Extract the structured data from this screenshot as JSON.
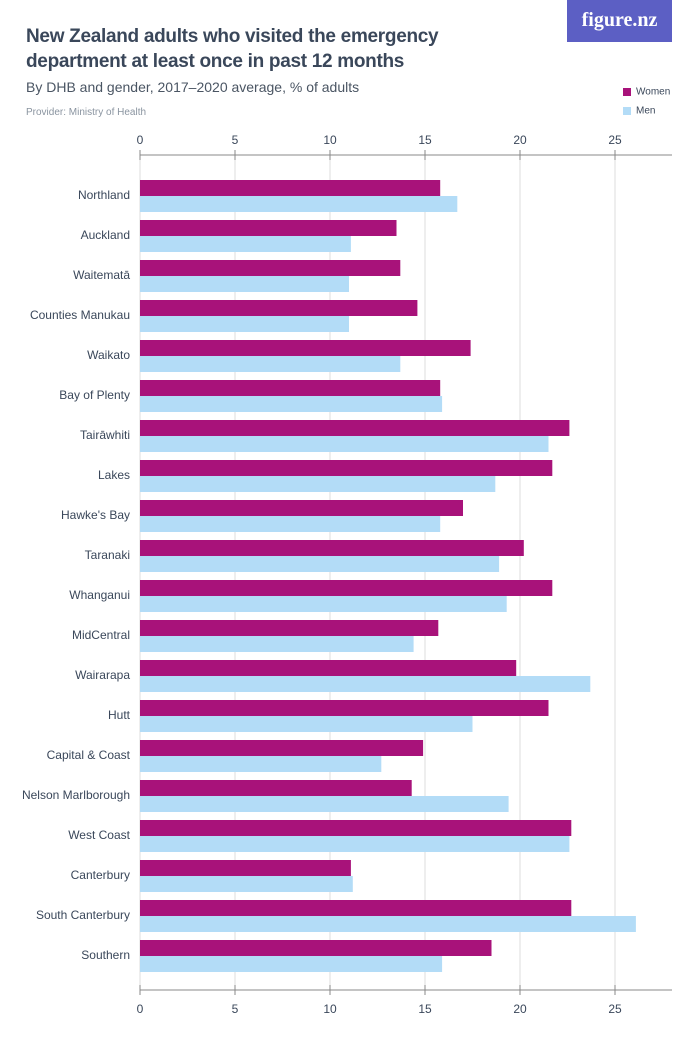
{
  "logo": "figure.nz",
  "chart_data": {
    "type": "hbar",
    "title": "New Zealand adults who visited the emergency department at least once in past 12 months",
    "subtitle": "By DHB and gender, 2017–2020 average, % of adults",
    "provider": "Provider: Ministry of Health",
    "categories": [
      "Northland",
      "Auckland",
      "Waitematā",
      "Counties Manukau",
      "Waikato",
      "Bay of Plenty",
      "Tairāwhiti",
      "Lakes",
      "Hawke's Bay",
      "Taranaki",
      "Whanganui",
      "MidCentral",
      "Wairarapa",
      "Hutt",
      "Capital & Coast",
      "Nelson Marlborough",
      "West Coast",
      "Canterbury",
      "South Canterbury",
      "Southern"
    ],
    "series": [
      {
        "name": "Women",
        "color": "#a8127a",
        "values": [
          15.8,
          13.5,
          13.7,
          14.6,
          17.4,
          15.8,
          22.6,
          21.7,
          17.0,
          20.2,
          21.7,
          15.7,
          19.8,
          21.5,
          14.9,
          14.3,
          22.7,
          11.1,
          22.7,
          18.5
        ]
      },
      {
        "name": "Men",
        "color": "#b3dcf7",
        "values": [
          16.7,
          11.1,
          11.0,
          11.0,
          13.7,
          15.9,
          21.5,
          18.7,
          15.8,
          18.9,
          19.3,
          14.4,
          23.7,
          17.5,
          12.7,
          19.4,
          22.6,
          11.2,
          26.1,
          15.9
        ]
      }
    ],
    "xlim": [
      0,
      28
    ],
    "xticks": [
      0,
      5,
      10,
      15,
      20,
      25
    ],
    "grid": true,
    "legend": "top-right"
  }
}
